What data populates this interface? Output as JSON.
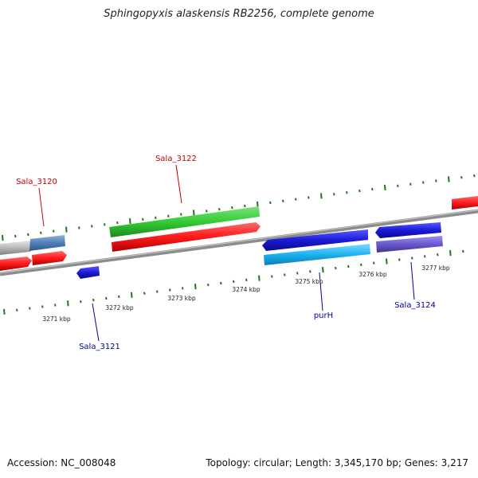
{
  "title": "Sphingopyxis alaskensis RB2256, complete genome",
  "footer": {
    "accession": "Accession: NC_008048",
    "stats": "Topology: circular; Length: 3,345,170 bp; Genes: 3,217"
  },
  "axis_labels": [
    "3271 kbp",
    "3272 kbp",
    "3273 kbp",
    "3274 kbp",
    "3275 kbp",
    "3276 kbp",
    "3277 kbp"
  ],
  "gene_labels": {
    "sala_3120": "Sala_3120",
    "sala_3121": "Sala_3121",
    "sala_3122": "Sala_3122",
    "purh": "purH",
    "sala_3124": "Sala_3124"
  },
  "colors": {
    "forward_label": "#c00000",
    "reverse_label": "#0000a0",
    "red": "#ff1a1a",
    "green": "#33cc33",
    "blue": "#1a1ad9",
    "cyan": "#1ab2f0",
    "purple": "#6a5acd",
    "steelblue": "#4f7fb5",
    "silver": "#b8b8b8",
    "backbone": "#8c8c8c",
    "ticks": "#1b7a1b"
  }
}
